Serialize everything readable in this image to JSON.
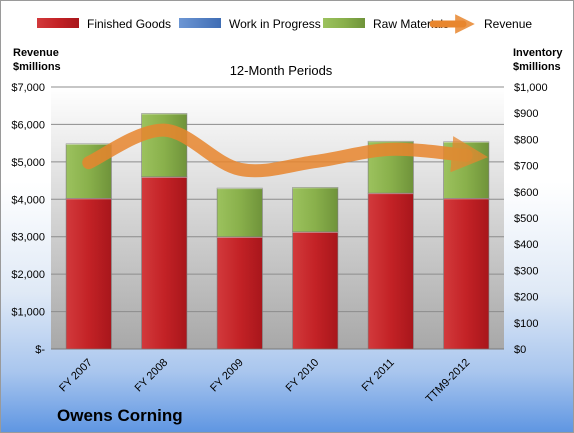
{
  "chart_data": {
    "type": "bar",
    "subtitle": "12-Month Periods",
    "company": "Owens Corning",
    "categories": [
      "FY 2007",
      "FY 2008",
      "FY 2009",
      "FY 2010",
      "FY 2011",
      "TTM9-2012"
    ],
    "left_axis": {
      "title_line1": "Revenue",
      "title_line2": "$millions",
      "ylim": [
        0,
        7000
      ],
      "tick_labels": [
        "$-",
        "$1,000",
        "$2,000",
        "$3,000",
        "$4,000",
        "$5,000",
        "$6,000",
        "$7,000"
      ]
    },
    "right_axis": {
      "title_line1": "Inventory",
      "title_line2": "$millions",
      "ylim": [
        0,
        1000
      ],
      "tick_labels": [
        "$0",
        "$100",
        "$200",
        "$300",
        "$400",
        "$500",
        "$600",
        "$700",
        "$800",
        "$900",
        "$1,000"
      ]
    },
    "series": [
      {
        "name": "Finished Goods",
        "type": "bar",
        "stack": "inventory",
        "axis": "right",
        "color": "#c8282b",
        "values": [
          575,
          657,
          428,
          447,
          595,
          575
        ]
      },
      {
        "name": "Work in Progress",
        "type": "bar",
        "stack": "inventory",
        "axis": "right",
        "color": "#4f7ec4",
        "values": [
          0,
          0,
          0,
          0,
          0,
          0
        ]
      },
      {
        "name": "Raw Materials",
        "type": "bar",
        "stack": "inventory",
        "axis": "right",
        "color": "#8db44f",
        "values": [
          208,
          242,
          186,
          170,
          198,
          216
        ]
      },
      {
        "name": "Revenue",
        "type": "line",
        "axis": "left",
        "color": "#e8862e",
        "values": [
          4978,
          5847,
          4803,
          5009,
          5335,
          5172
        ]
      }
    ],
    "grid": true,
    "legend": "top"
  }
}
